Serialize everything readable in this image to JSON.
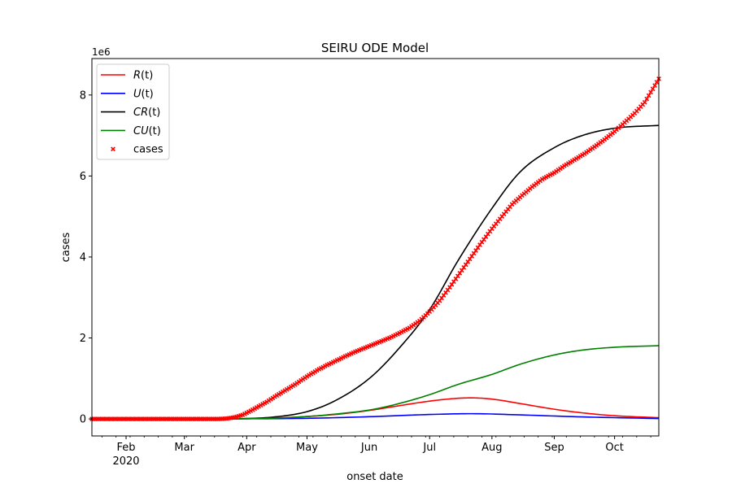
{
  "chart_data": {
    "type": "line",
    "title": "SEIRU ODE Model",
    "xlabel": "onset date",
    "ylabel": "cases",
    "y_offset_label": "1e6",
    "xlim": [
      "2020-01-15",
      "2020-10-23"
    ],
    "ylim": [
      -0.42,
      8.9
    ],
    "y_scale_note": "values in units of 1e6",
    "y_ticks": [
      0,
      2,
      4,
      6,
      8
    ],
    "y_tick_labels": [
      "0",
      "2",
      "4",
      "6",
      "8"
    ],
    "x_ticks": [
      "2020-02-01",
      "2020-03-01",
      "2020-04-01",
      "2020-05-01",
      "2020-06-01",
      "2020-07-01",
      "2020-08-01",
      "2020-09-01",
      "2020-10-01"
    ],
    "x_tick_labels": [
      "Feb",
      "Mar",
      "Apr",
      "May",
      "Jun",
      "Jul",
      "Aug",
      "Sep",
      "Oct"
    ],
    "x_year_label": "2020",
    "grid": false,
    "legend_position": "top-left",
    "legend": [
      "R(t)",
      "U(t)",
      "CR(t)",
      "CU(t)",
      "cases"
    ],
    "series": [
      {
        "name": "R(t)",
        "kind": "line",
        "color": "#ff0000",
        "x": [
          "2020-01-15",
          "2020-03-20",
          "2020-04-01",
          "2020-04-15",
          "2020-05-01",
          "2020-05-15",
          "2020-06-01",
          "2020-06-15",
          "2020-07-01",
          "2020-07-15",
          "2020-07-22",
          "2020-08-01",
          "2020-08-15",
          "2020-09-01",
          "2020-09-15",
          "2020-10-01",
          "2020-10-23"
        ],
        "y": [
          0,
          0.005,
          0.01,
          0.025,
          0.06,
          0.11,
          0.21,
          0.32,
          0.44,
          0.51,
          0.52,
          0.49,
          0.38,
          0.24,
          0.15,
          0.08,
          0.03
        ]
      },
      {
        "name": "U(t)",
        "kind": "line",
        "color": "#0000ff",
        "x": [
          "2020-01-15",
          "2020-03-20",
          "2020-04-01",
          "2020-05-01",
          "2020-06-01",
          "2020-07-01",
          "2020-07-22",
          "2020-08-15",
          "2020-09-15",
          "2020-10-23"
        ],
        "y": [
          0,
          0.002,
          0.004,
          0.016,
          0.055,
          0.11,
          0.13,
          0.1,
          0.05,
          0.01
        ]
      },
      {
        "name": "CR(t)",
        "kind": "line",
        "color": "#000000",
        "x": [
          "2020-01-15",
          "2020-03-20",
          "2020-04-01",
          "2020-04-15",
          "2020-05-01",
          "2020-05-15",
          "2020-06-01",
          "2020-06-15",
          "2020-07-01",
          "2020-07-15",
          "2020-08-01",
          "2020-08-15",
          "2020-09-01",
          "2020-09-15",
          "2020-10-01",
          "2020-10-23"
        ],
        "y": [
          0,
          0.002,
          0.01,
          0.05,
          0.18,
          0.45,
          1.0,
          1.7,
          2.7,
          3.9,
          5.2,
          6.1,
          6.7,
          7.0,
          7.18,
          7.25
        ]
      },
      {
        "name": "CU(t)",
        "kind": "line",
        "color": "#008000",
        "x": [
          "2020-01-15",
          "2020-03-20",
          "2020-04-01",
          "2020-04-15",
          "2020-05-01",
          "2020-05-15",
          "2020-06-01",
          "2020-06-15",
          "2020-07-01",
          "2020-07-15",
          "2020-08-01",
          "2020-08-15",
          "2020-09-01",
          "2020-09-15",
          "2020-10-01",
          "2020-10-23"
        ],
        "y": [
          0,
          0.001,
          0.005,
          0.02,
          0.06,
          0.12,
          0.22,
          0.37,
          0.6,
          0.85,
          1.1,
          1.35,
          1.58,
          1.7,
          1.77,
          1.81
        ]
      },
      {
        "name": "cases",
        "kind": "scatter",
        "color": "#ff0000",
        "marker": "x",
        "x": [
          "2020-01-15",
          "2020-01-25",
          "2020-02-05",
          "2020-02-15",
          "2020-02-25",
          "2020-03-05",
          "2020-03-15",
          "2020-03-18",
          "2020-03-22",
          "2020-03-26",
          "2020-03-30",
          "2020-04-03",
          "2020-04-07",
          "2020-04-11",
          "2020-04-15",
          "2020-04-20",
          "2020-04-25",
          "2020-05-01",
          "2020-05-06",
          "2020-05-11",
          "2020-05-16",
          "2020-05-21",
          "2020-05-26",
          "2020-06-01",
          "2020-06-06",
          "2020-06-11",
          "2020-06-16",
          "2020-06-21",
          "2020-06-26",
          "2020-07-01",
          "2020-07-06",
          "2020-07-11",
          "2020-07-16",
          "2020-07-21",
          "2020-07-26",
          "2020-08-01",
          "2020-08-06",
          "2020-08-11",
          "2020-08-16",
          "2020-08-21",
          "2020-08-26",
          "2020-09-01",
          "2020-09-06",
          "2020-09-11",
          "2020-09-16",
          "2020-09-21",
          "2020-09-26",
          "2020-10-01",
          "2020-10-06",
          "2020-10-11",
          "2020-10-16",
          "2020-10-23"
        ],
        "y": [
          -0.001,
          -0.001,
          -0.001,
          -0.001,
          -0.001,
          -0.001,
          -0.001,
          -0.001,
          0.01,
          0.04,
          0.1,
          0.2,
          0.31,
          0.42,
          0.55,
          0.7,
          0.85,
          1.05,
          1.2,
          1.33,
          1.45,
          1.57,
          1.68,
          1.8,
          1.9,
          2.0,
          2.12,
          2.25,
          2.42,
          2.65,
          2.92,
          3.25,
          3.6,
          3.95,
          4.3,
          4.7,
          5.0,
          5.3,
          5.52,
          5.73,
          5.92,
          6.08,
          6.25,
          6.4,
          6.55,
          6.72,
          6.9,
          7.1,
          7.32,
          7.55,
          7.82,
          8.4
        ]
      }
    ]
  }
}
